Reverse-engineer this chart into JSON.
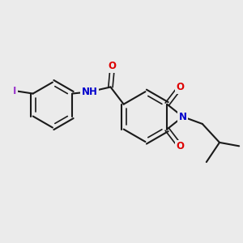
{
  "background_color": "#ebebeb",
  "bond_color": "#1a1a1a",
  "atom_colors": {
    "O": "#dd0000",
    "N": "#0000cc",
    "I": "#9933cc",
    "C": "#1a1a1a"
  },
  "figsize": [
    3.0,
    3.0
  ],
  "dpi": 100
}
